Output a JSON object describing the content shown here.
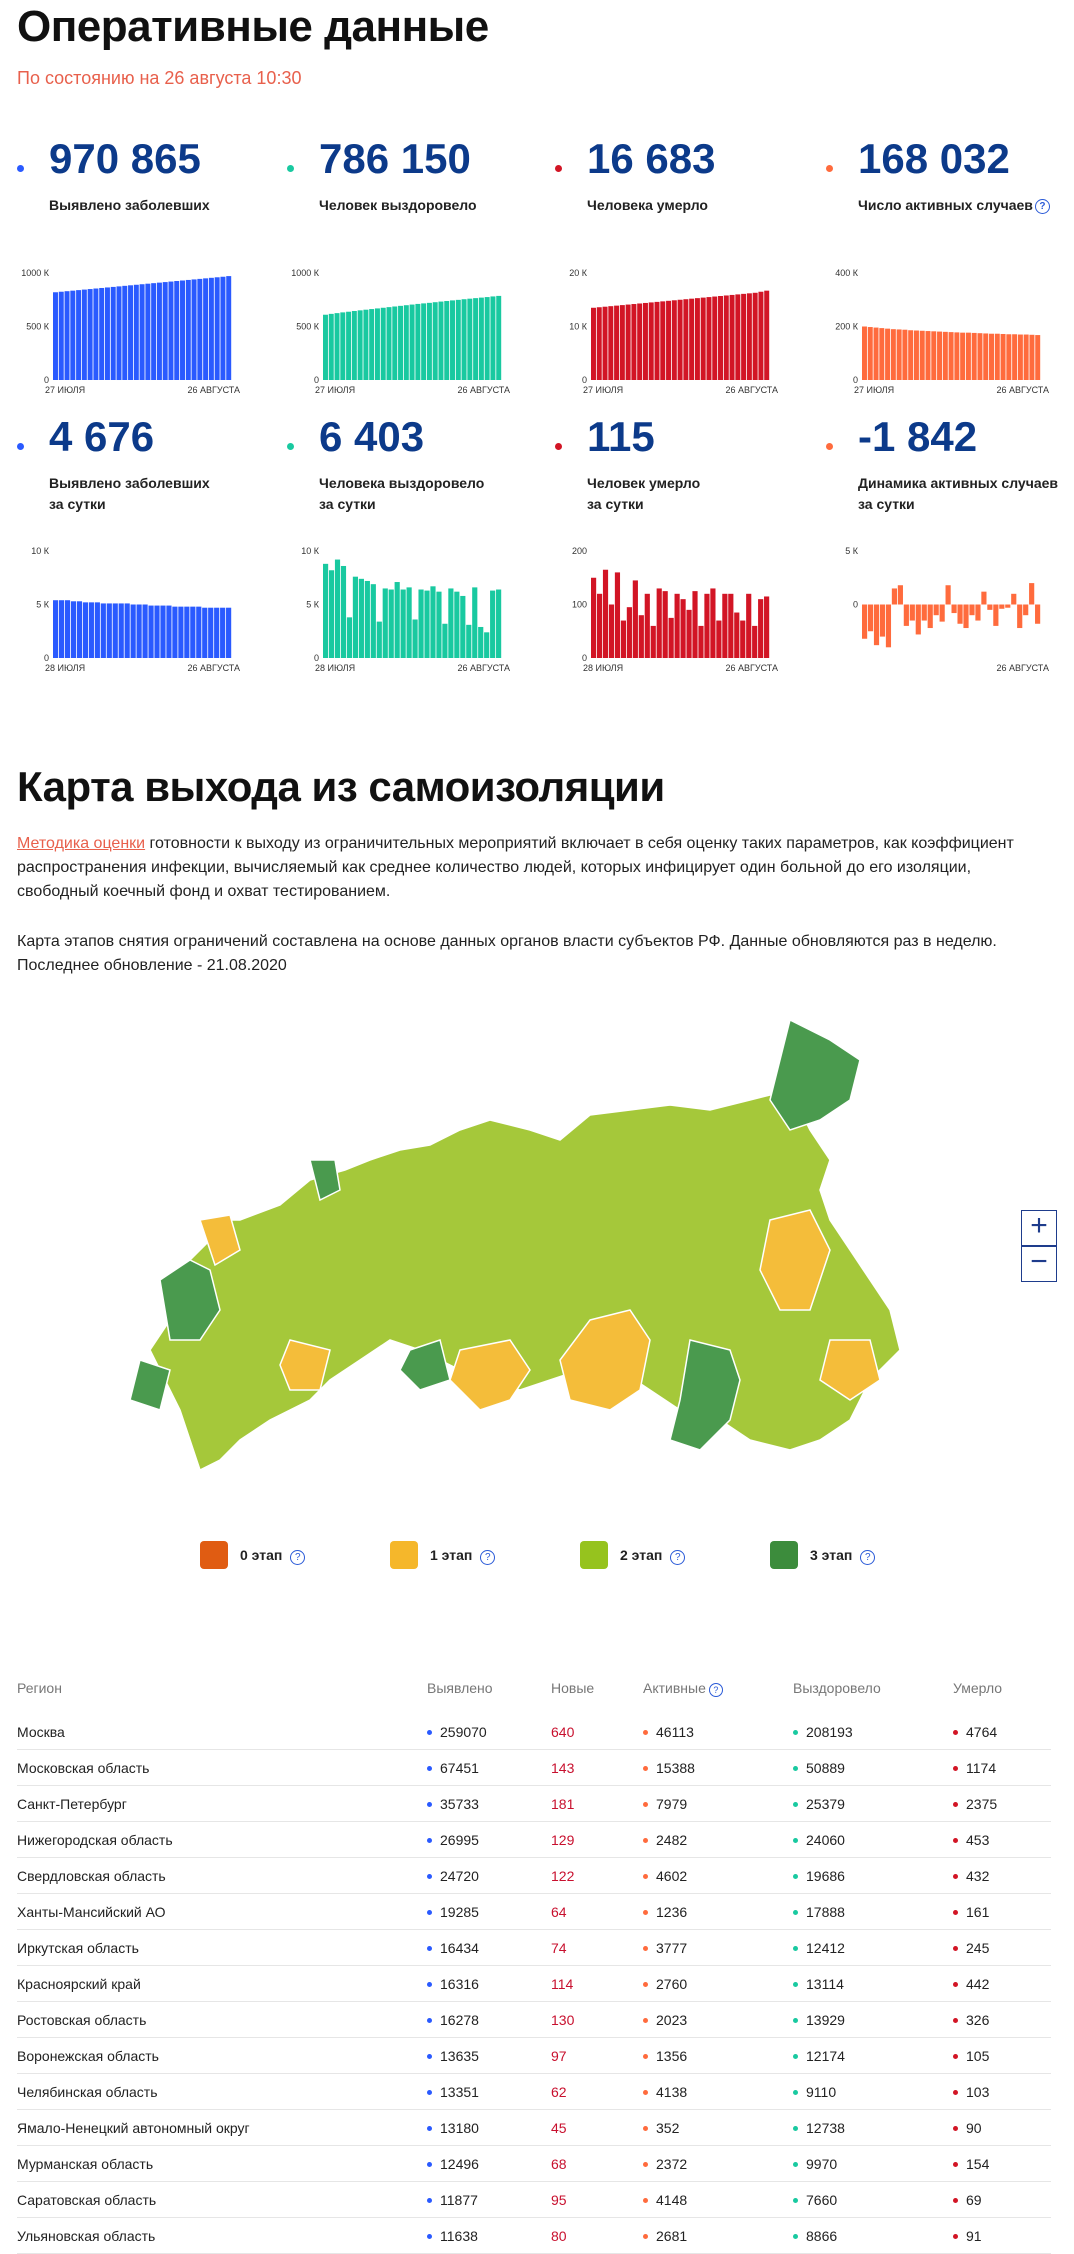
{
  "header": {
    "title": "Оперативные данные",
    "subtitle": "По состоянию на 26 августа 10:30"
  },
  "stats": [
    {
      "value": "970 865",
      "label1": "Выявлено заболевших",
      "label2": "",
      "help": false,
      "color": "#2a5aff",
      "x_start": "27 ИЮЛЯ",
      "x_end": "26 АВГУСТА",
      "yticks": [
        "0",
        "500 К",
        "1000 К"
      ],
      "ymax": 1000,
      "values": [
        820,
        825,
        830,
        835,
        840,
        845,
        850,
        855,
        860,
        865,
        870,
        875,
        880,
        885,
        890,
        895,
        900,
        905,
        910,
        915,
        920,
        925,
        930,
        935,
        940,
        945,
        950,
        955,
        960,
        965,
        971
      ]
    },
    {
      "value": "786 150",
      "label1": "Человек выздоровело",
      "label2": "",
      "help": false,
      "color": "#19c9a0",
      "x_start": "27 ИЮЛЯ",
      "x_end": "26 АВГУСТА",
      "yticks": [
        "0",
        "500 К",
        "1000 К"
      ],
      "ymax": 1000,
      "values": [
        610,
        618,
        625,
        632,
        638,
        645,
        651,
        657,
        663,
        669,
        675,
        681,
        687,
        693,
        699,
        705,
        711,
        716,
        721,
        727,
        733,
        738,
        744,
        749,
        755,
        760,
        765,
        770,
        775,
        781,
        786
      ]
    },
    {
      "value": "16 683",
      "label1": "Человека умерло",
      "label2": "",
      "help": false,
      "color": "#d21525",
      "x_start": "27 ИЮЛЯ",
      "x_end": "26 АВГУСТА",
      "yticks": [
        "0",
        "10 К",
        "20 К"
      ],
      "ymax": 20,
      "values": [
        13.5,
        13.6,
        13.7,
        13.8,
        13.9,
        14.0,
        14.1,
        14.2,
        14.3,
        14.4,
        14.5,
        14.6,
        14.7,
        14.8,
        14.9,
        15.0,
        15.1,
        15.2,
        15.3,
        15.4,
        15.5,
        15.6,
        15.7,
        15.8,
        15.9,
        16.0,
        16.1,
        16.2,
        16.3,
        16.5,
        16.7
      ]
    },
    {
      "value": "168 032",
      "label1": "Число активных случаев",
      "label2": "",
      "help": true,
      "color": "#ff6b3d",
      "x_start": "27 ИЮЛЯ",
      "x_end": "26 АВГУСТА",
      "yticks": [
        "0",
        "200 К",
        "400 К"
      ],
      "ymax": 400,
      "values": [
        200,
        198,
        196,
        194,
        192,
        190,
        189,
        188,
        186,
        185,
        184,
        183,
        182,
        181,
        180,
        179,
        178,
        177,
        177,
        176,
        175,
        174,
        173,
        173,
        172,
        171,
        171,
        170,
        170,
        169,
        168
      ]
    },
    {
      "value": "4 676",
      "label1": "Выявлено заболевших",
      "label2": "за сутки",
      "help": false,
      "color": "#2a5aff",
      "x_start": "28 ИЮЛЯ",
      "x_end": "26 АВГУСТА",
      "yticks": [
        "0",
        "5 К",
        "10 К"
      ],
      "ymax": 10,
      "values": [
        5.4,
        5.4,
        5.4,
        5.3,
        5.3,
        5.2,
        5.2,
        5.2,
        5.1,
        5.1,
        5.1,
        5.1,
        5.1,
        5.0,
        5.0,
        5.0,
        4.9,
        4.9,
        4.9,
        4.9,
        4.8,
        4.8,
        4.8,
        4.8,
        4.8,
        4.7,
        4.7,
        4.7,
        4.7,
        4.7
      ]
    },
    {
      "value": "6 403",
      "label1": "Человека выздоровело",
      "label2": "за сутки",
      "help": false,
      "color": "#19c9a0",
      "x_start": "28 ИЮЛЯ",
      "x_end": "26 АВГУСТА",
      "yticks": [
        "0",
        "5 К",
        "10 К"
      ],
      "ymax": 10,
      "values": [
        8.8,
        8.2,
        9.2,
        8.6,
        3.8,
        7.6,
        7.4,
        7.2,
        6.9,
        3.4,
        6.5,
        6.4,
        7.1,
        6.4,
        6.6,
        3.6,
        6.4,
        6.3,
        6.7,
        6.2,
        3.2,
        6.5,
        6.2,
        5.8,
        3.1,
        6.6,
        2.9,
        2.4,
        6.3,
        6.4
      ]
    },
    {
      "value": "115",
      "label1": "Человек умерло",
      "label2": "за сутки",
      "help": false,
      "color": "#d21525",
      "x_start": "28 ИЮЛЯ",
      "x_end": "26 АВГУСТА",
      "yticks": [
        "0",
        "100",
        "200"
      ],
      "ymax": 200,
      "values": [
        150,
        120,
        165,
        100,
        160,
        70,
        95,
        145,
        80,
        120,
        60,
        130,
        125,
        75,
        120,
        110,
        90,
        125,
        60,
        120,
        130,
        70,
        120,
        120,
        85,
        70,
        120,
        60,
        110,
        115
      ]
    },
    {
      "value": "-1 842",
      "label1": "Динамика активных случаев",
      "label2": "за сутки",
      "help": false,
      "color": "#ff6b3d",
      "x_start": "",
      "x_end": "26 АВГУСТА",
      "yticks": [
        "",
        "0",
        "5 К"
      ],
      "ymax": 5,
      "ymin": -5,
      "values": [
        -3.2,
        -2.5,
        -3.8,
        -3.0,
        -4.0,
        1.5,
        1.8,
        -2.0,
        -1.5,
        -2.8,
        -1.5,
        -2.2,
        -1.0,
        -1.6,
        1.8,
        -0.8,
        -1.8,
        -2.2,
        -1.0,
        -1.5,
        1.2,
        -0.5,
        -2.0,
        -0.4,
        -0.3,
        1.0,
        -2.2,
        -1.0,
        2.0,
        -1.8
      ]
    }
  ],
  "map_section": {
    "title": "Карта выхода из самоизоляции",
    "method_link": "Методика оценки",
    "para1_rest": " готовности к выходу из ограничительных мероприятий включает в себя оценку таких параметров, как коэффициент распространения инфекции, вычисляемый как среднее количество людей, которых инфицирует один больной до его изоляции, свободный коечный фонд и охват тестированием.",
    "para2": "Карта этапов снятия ограничений составлена на основе данных органов власти субъектов РФ. Данные обновляются раз в неделю. Последнее обновление - 21.08.2020",
    "zoom_in": "+",
    "zoom_out": "−",
    "legend": [
      {
        "label": "0 этап",
        "color": "#e05c12"
      },
      {
        "label": "1 этап",
        "color": "#f5b72b"
      },
      {
        "label": "2 этап",
        "color": "#96c31e"
      },
      {
        "label": "3 этап",
        "color": "#3c8c3c"
      }
    ],
    "map_colors": {
      "stage1": "#f4bd3a",
      "stage2": "#a5c83a",
      "stage3": "#4a9a4e"
    }
  },
  "table": {
    "headers": [
      "Регион",
      "Выявлено",
      "Новые",
      "Активные",
      "Выздоровело",
      "Умерло"
    ],
    "rows": [
      [
        "Москва",
        "259070",
        "640",
        "46113",
        "208193",
        "4764"
      ],
      [
        "Московская область",
        "67451",
        "143",
        "15388",
        "50889",
        "1174"
      ],
      [
        "Санкт-Петербург",
        "35733",
        "181",
        "7979",
        "25379",
        "2375"
      ],
      [
        "Нижегородская область",
        "26995",
        "129",
        "2482",
        "24060",
        "453"
      ],
      [
        "Свердловская область",
        "24720",
        "122",
        "4602",
        "19686",
        "432"
      ],
      [
        "Ханты-Мансийский АО",
        "19285",
        "64",
        "1236",
        "17888",
        "161"
      ],
      [
        "Иркутская область",
        "16434",
        "74",
        "3777",
        "12412",
        "245"
      ],
      [
        "Красноярский край",
        "16316",
        "114",
        "2760",
        "13114",
        "442"
      ],
      [
        "Ростовская область",
        "16278",
        "130",
        "2023",
        "13929",
        "326"
      ],
      [
        "Воронежская область",
        "13635",
        "97",
        "1356",
        "12174",
        "105"
      ],
      [
        "Челябинская область",
        "13351",
        "62",
        "4138",
        "9110",
        "103"
      ],
      [
        "Ямало-Ненецкий автономный округ",
        "13180",
        "45",
        "352",
        "12738",
        "90"
      ],
      [
        "Мурманская область",
        "12496",
        "68",
        "2372",
        "9970",
        "154"
      ],
      [
        "Саратовская область",
        "11877",
        "95",
        "4148",
        "7660",
        "69"
      ],
      [
        "Ульяновская область",
        "11638",
        "80",
        "2681",
        "8866",
        "91"
      ]
    ]
  }
}
